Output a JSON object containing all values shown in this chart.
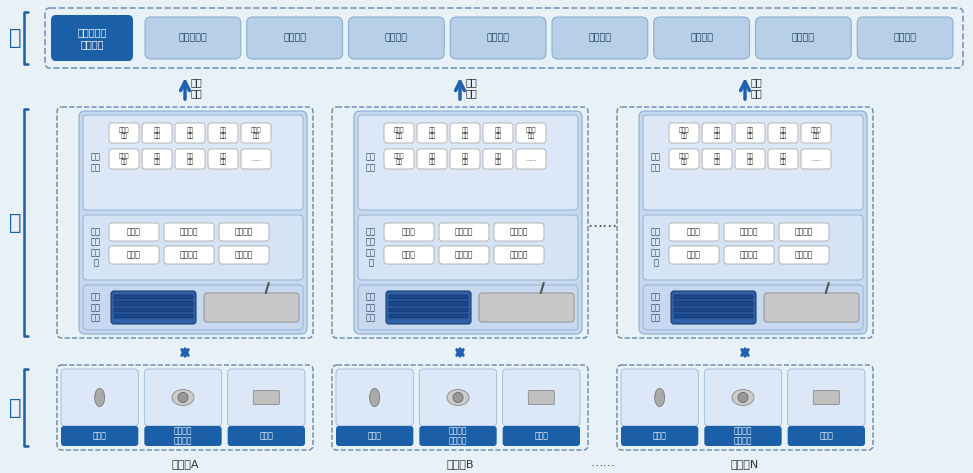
{
  "bg_color": "#e8f0f8",
  "cloud_title_bg": "#1a5fa8",
  "cloud_title_text": "#ffffff",
  "cloud_module_bg": "#b8cfe8",
  "cloud_module_border": "#8ab0d0",
  "cloud_border": "#7799bb",
  "cloud_modules": [
    "数据驾驶舱",
    "远程监控",
    "状态监测",
    "告警设置",
    "告警管理",
    "数据分析",
    "日志管理",
    "用户管理"
  ],
  "cloud_title": "水电站智能\n集控系统",
  "edge_outer_border": "#6688aa",
  "edge_inner_bg": "#c8d8ef",
  "edge_inner_border": "#8aaed0",
  "app_section_bg": "#dce8f8",
  "app_section_border": "#99b8d8",
  "mid_section_bg": "#d4e4f5",
  "mid_section_border": "#99b8d8",
  "dev_section_bg": "#c8d8ef",
  "dev_section_border": "#99b8d8",
  "small_box_bg": "#ffffff",
  "small_box_border": "#aaaaaa",
  "sensor_outer_border": "#6688aa",
  "sensor_cell_bg": "#dce8f8",
  "sensor_cell_border": "#99b8d8",
  "sensor_label_bg": "#1a5fa8",
  "sensor_label_text": "#ffffff",
  "arrow_color": "#2060b0",
  "label_color": "#1a3a5c",
  "side_label_color": "#1a5fa8",
  "bracket_color": "#1a5fa8",
  "dot_color": "#555555",
  "station_label_color": "#333333",
  "cloud_modules_count": 8,
  "fiber_label": "光纤\n内网",
  "edge_app_label": "边缘\n应用",
  "edge_mid_label": "边缘\n计算\n中间\n件",
  "edge_dev_label": "边缘\n计算\n设备",
  "edge_apps_row1": [
    "安全帽\n识别",
    "工装\n识别",
    "仪表\n识别",
    "液位\n识别",
    "指示灯\n识别"
  ],
  "edge_apps_row2": [
    "分合闸\n识别",
    "电子\n围栏",
    "远程\n升级",
    "设备\n管理",
    "……"
  ],
  "middleware_row1": [
    "数据库",
    "数据采集",
    "消息路由"
  ],
  "middleware_row2": [
    "微服务",
    "云边协同",
    "设备接入"
  ],
  "sensors": [
    "传感器",
    "红外热成\n像摄像头",
    "摄像头"
  ],
  "stations": [
    "水电站A",
    "水电站B",
    "水电站N"
  ]
}
